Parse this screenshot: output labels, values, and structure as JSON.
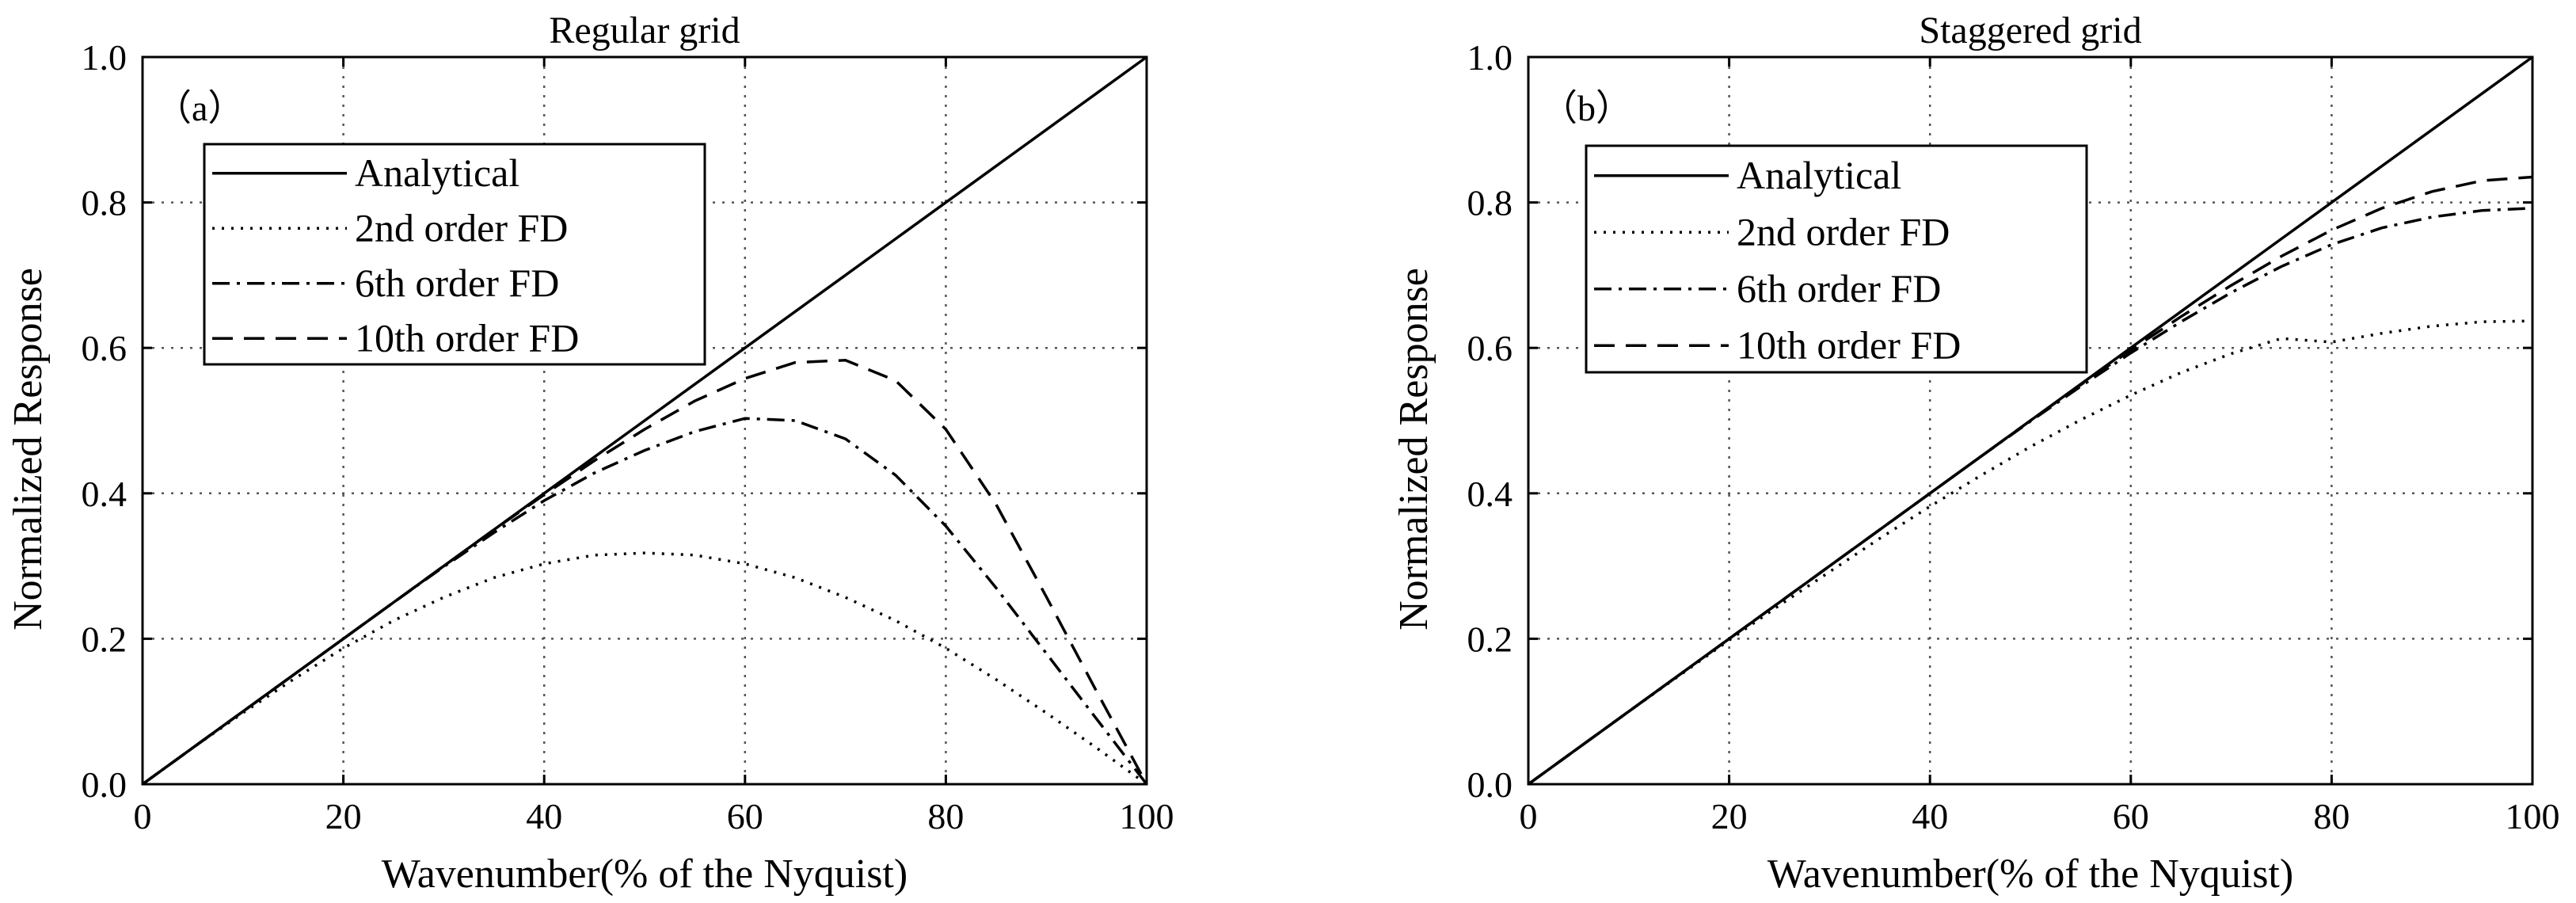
{
  "chart_data": [
    {
      "type": "line",
      "title": "Regular grid",
      "panel_label": "（a）",
      "xlabel": "Wavenumber(% of the Nyquist)",
      "ylabel": "Normalized Response",
      "xlim": [
        0,
        100
      ],
      "ylim": [
        0,
        1.0
      ],
      "xticks": [
        0,
        20,
        40,
        60,
        80,
        100
      ],
      "xtick_labels": [
        "0",
        "20",
        "40",
        "60",
        "80",
        "100"
      ],
      "yticks": [
        0,
        0.2,
        0.4,
        0.6,
        0.8,
        1.0
      ],
      "ytick_labels": [
        "0.0",
        "0.2",
        "0.4",
        "0.6",
        "0.8",
        "1.0"
      ],
      "grid": true,
      "legend_position": "upper-left",
      "x": [
        0,
        5,
        10,
        15,
        20,
        25,
        30,
        35,
        40,
        45,
        50,
        55,
        60,
        65,
        70,
        75,
        80,
        85,
        90,
        95,
        100
      ],
      "series": [
        {
          "name": "Analytical",
          "style": "solid",
          "values": [
            0,
            0.05,
            0.1,
            0.15,
            0.2,
            0.25,
            0.3,
            0.35,
            0.4,
            0.45,
            0.5,
            0.55,
            0.6,
            0.65,
            0.7,
            0.75,
            0.8,
            0.85,
            0.9,
            0.95,
            1.0
          ]
        },
        {
          "name": "2nd order FD",
          "style": "dotted",
          "values": [
            0,
            0.05,
            0.098,
            0.144,
            0.187,
            0.225,
            0.257,
            0.284,
            0.303,
            0.315,
            0.318,
            0.315,
            0.303,
            0.284,
            0.257,
            0.225,
            0.187,
            0.144,
            0.098,
            0.05,
            0
          ]
        },
        {
          "name": "6th order FD",
          "style": "dashdot",
          "values": [
            0,
            0.05,
            0.1,
            0.15,
            0.2,
            0.25,
            0.299,
            0.346,
            0.39,
            0.428,
            0.459,
            0.485,
            0.503,
            0.5,
            0.475,
            0.425,
            0.355,
            0.27,
            0.18,
            0.09,
            0
          ]
        },
        {
          "name": "10th  order FD",
          "style": "dashed",
          "values": [
            0,
            0.05,
            0.1,
            0.15,
            0.2,
            0.25,
            0.3,
            0.35,
            0.398,
            0.445,
            0.488,
            0.527,
            0.558,
            0.58,
            0.583,
            0.555,
            0.488,
            0.385,
            0.258,
            0.128,
            0
          ]
        }
      ]
    },
    {
      "type": "line",
      "title": "Staggered grid",
      "panel_label": "（b）",
      "xlabel": "Wavenumber(% of the Nyquist)",
      "ylabel": "Normalized Response",
      "xlim": [
        0,
        100
      ],
      "ylim": [
        0,
        1.0
      ],
      "xticks": [
        0,
        20,
        40,
        60,
        80,
        100
      ],
      "xtick_labels": [
        "0",
        "20",
        "40",
        "60",
        "80",
        "100"
      ],
      "yticks": [
        0,
        0.2,
        0.4,
        0.6,
        0.8,
        1.0
      ],
      "ytick_labels": [
        "0.0",
        "0.2",
        "0.4",
        "0.6",
        "0.8",
        "1.0"
      ],
      "grid": true,
      "legend_position": "upper-left",
      "x": [
        0,
        5,
        10,
        15,
        20,
        25,
        30,
        35,
        40,
        45,
        50,
        55,
        60,
        65,
        70,
        75,
        80,
        85,
        90,
        95,
        100
      ],
      "series": [
        {
          "name": "Analytical",
          "style": "solid",
          "values": [
            0,
            0.05,
            0.1,
            0.15,
            0.2,
            0.25,
            0.3,
            0.35,
            0.4,
            0.45,
            0.5,
            0.55,
            0.6,
            0.65,
            0.7,
            0.75,
            0.8,
            0.85,
            0.9,
            0.95,
            1.0
          ]
        },
        {
          "name": "2nd order FD",
          "style": "dotted",
          "values": [
            0,
            0.05,
            0.1,
            0.149,
            0.198,
            0.246,
            0.292,
            0.338,
            0.382,
            0.424,
            0.464,
            0.501,
            0.535,
            0.566,
            0.592,
            0.613,
            0.608,
            0.62,
            0.63,
            0.636,
            0.637
          ]
        },
        {
          "name": "6th order FD",
          "style": "dashdot",
          "values": [
            0,
            0.05,
            0.1,
            0.15,
            0.2,
            0.25,
            0.3,
            0.35,
            0.4,
            0.45,
            0.499,
            0.547,
            0.593,
            0.636,
            0.676,
            0.712,
            0.742,
            0.765,
            0.78,
            0.789,
            0.792
          ]
        },
        {
          "name": "10th  order FD",
          "style": "dashed",
          "values": [
            0,
            0.05,
            0.1,
            0.15,
            0.2,
            0.25,
            0.3,
            0.35,
            0.4,
            0.45,
            0.5,
            0.549,
            0.597,
            0.643,
            0.686,
            0.726,
            0.762,
            0.792,
            0.815,
            0.83,
            0.835
          ]
        }
      ]
    }
  ]
}
